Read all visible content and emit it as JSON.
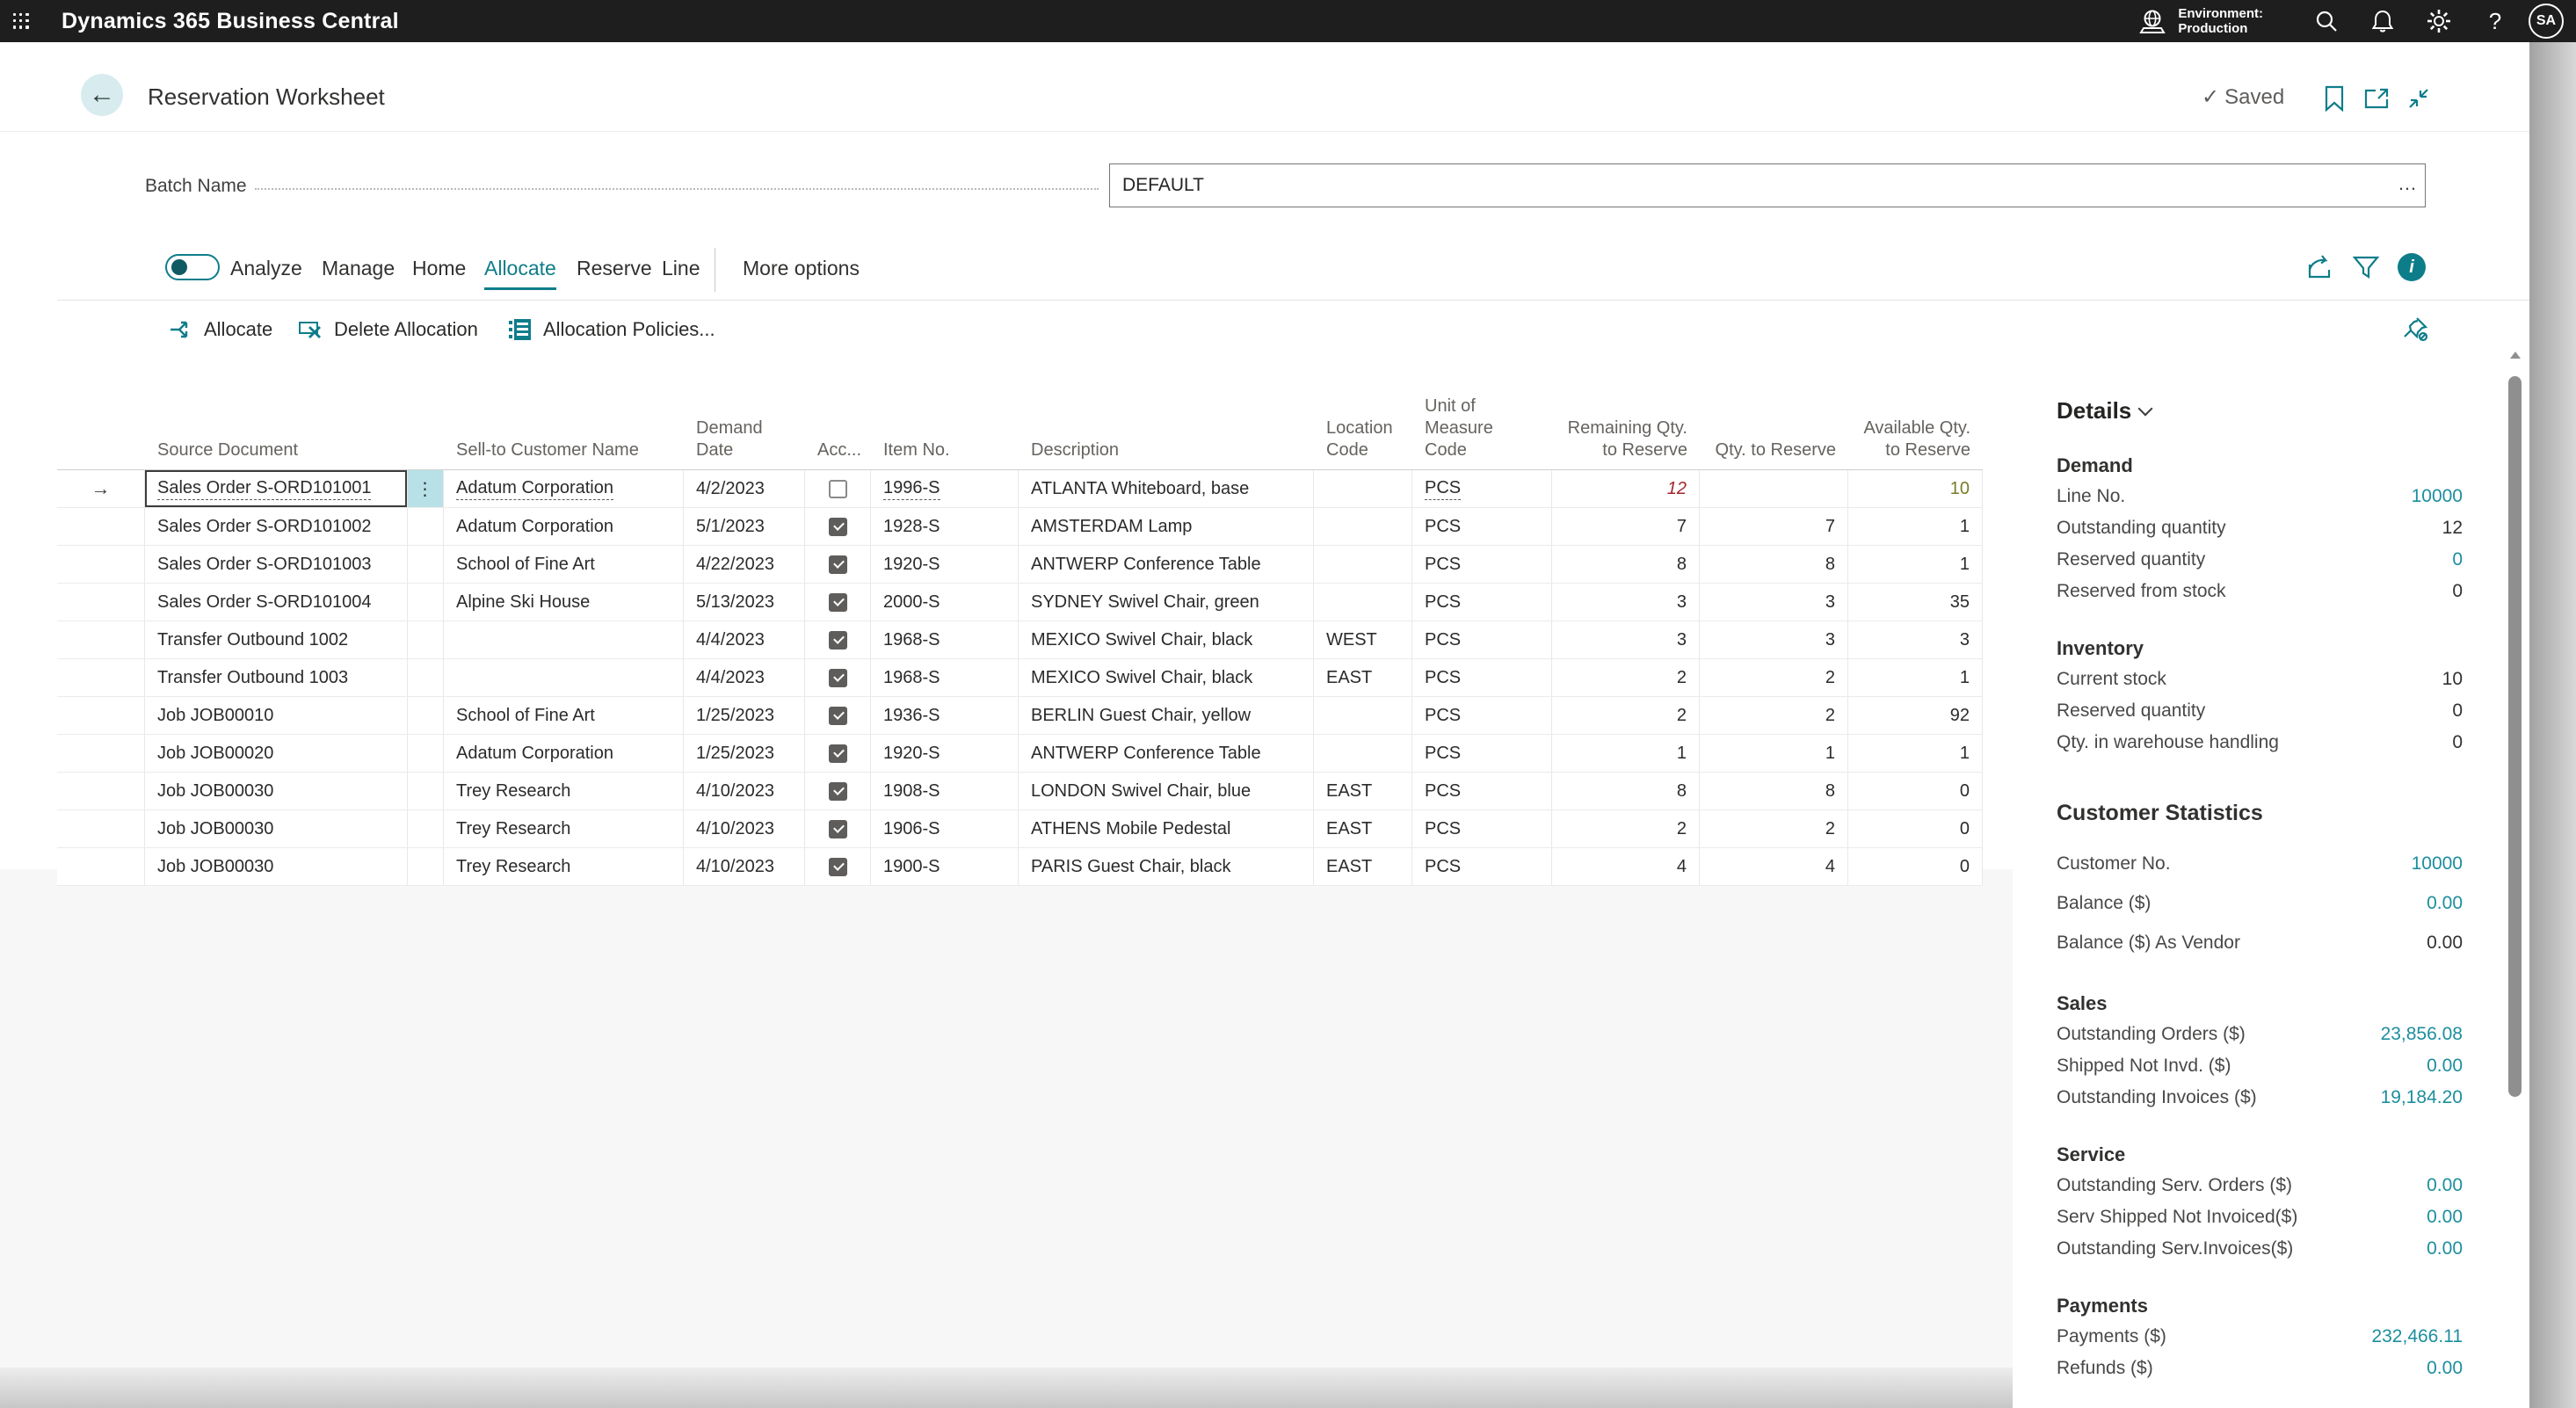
{
  "colors": {
    "accent": "#0e7d8a",
    "link_value": "#1d8e9e",
    "attention_red": "#a4262c",
    "favorable_olive": "#7b7b27",
    "topbar_bg": "#1f1e1e",
    "selection_teal": "#b7e1e6"
  },
  "topbar": {
    "app_title": "Dynamics 365 Business Central",
    "environment_label": "Environment:",
    "environment_name": "Production",
    "avatar_initials": "SA",
    "icons": [
      "app-launcher",
      "environment-globe",
      "search",
      "notifications-bell",
      "settings-gear",
      "help",
      "avatar"
    ]
  },
  "header": {
    "title": "Reservation Worksheet",
    "saved_check": "✓",
    "saved_label": "Saved",
    "icons": [
      "bookmark",
      "open-in-new-window",
      "collapse"
    ]
  },
  "batch": {
    "label": "Batch Name",
    "value": "DEFAULT",
    "assist_edit": "…"
  },
  "ribbon": {
    "toggle_label": "Analyze",
    "tabs": [
      {
        "label": "Analyze"
      },
      {
        "label": "Manage"
      },
      {
        "label": "Home"
      },
      {
        "label": "Allocate",
        "active": true
      },
      {
        "label": "Reserve"
      },
      {
        "label": "Line"
      }
    ],
    "more_options": "More options",
    "actions": [
      {
        "label": "Allocate"
      },
      {
        "label": "Delete Allocation"
      },
      {
        "label": "Allocation Policies..."
      }
    ],
    "right_icons": [
      "share",
      "filter",
      "info"
    ],
    "pin_icon": "unpin"
  },
  "table": {
    "selected_row_marker": "→",
    "ellipsis_glyph": "⋮",
    "columns": [
      "Source Document",
      "Sell-to Customer Name",
      "Demand Date",
      "Acc...",
      "Item No.",
      "Description",
      "Location Code",
      "Unit of Measure Code",
      "Remaining Qty. to Reserve",
      "Qty. to Reserve",
      "Available Qty. to Reserve"
    ],
    "rows": [
      {
        "source_document": "Sales Order S-ORD101001",
        "customer": "Adatum Corporation",
        "demand_date": "4/2/2023",
        "accepted": false,
        "item_no": "1996-S",
        "description": "ATLANTA Whiteboard, base",
        "location_code": "",
        "uom": "PCS",
        "remaining_qty": "12",
        "qty_to_reserve": "",
        "available_qty": "10",
        "selected": true,
        "remaining_style": "attention",
        "available_style": "favorable"
      },
      {
        "source_document": "Sales Order S-ORD101002",
        "customer": "Adatum Corporation",
        "demand_date": "5/1/2023",
        "accepted": true,
        "item_no": "1928-S",
        "description": "AMSTERDAM Lamp",
        "location_code": "",
        "uom": "PCS",
        "remaining_qty": "7",
        "qty_to_reserve": "7",
        "available_qty": "1"
      },
      {
        "source_document": "Sales Order S-ORD101003",
        "customer": "School of Fine Art",
        "demand_date": "4/22/2023",
        "accepted": true,
        "item_no": "1920-S",
        "description": "ANTWERP Conference Table",
        "location_code": "",
        "uom": "PCS",
        "remaining_qty": "8",
        "qty_to_reserve": "8",
        "available_qty": "1"
      },
      {
        "source_document": "Sales Order S-ORD101004",
        "customer": "Alpine Ski House",
        "demand_date": "5/13/2023",
        "accepted": true,
        "item_no": "2000-S",
        "description": "SYDNEY Swivel Chair, green",
        "location_code": "",
        "uom": "PCS",
        "remaining_qty": "3",
        "qty_to_reserve": "3",
        "available_qty": "35"
      },
      {
        "source_document": "Transfer Outbound 1002",
        "customer": "",
        "demand_date": "4/4/2023",
        "accepted": true,
        "item_no": "1968-S",
        "description": "MEXICO Swivel Chair, black",
        "location_code": "WEST",
        "uom": "PCS",
        "remaining_qty": "3",
        "qty_to_reserve": "3",
        "available_qty": "3"
      },
      {
        "source_document": "Transfer Outbound 1003",
        "customer": "",
        "demand_date": "4/4/2023",
        "accepted": true,
        "item_no": "1968-S",
        "description": "MEXICO Swivel Chair, black",
        "location_code": "EAST",
        "uom": "PCS",
        "remaining_qty": "2",
        "qty_to_reserve": "2",
        "available_qty": "1"
      },
      {
        "source_document": "Job JOB00010",
        "customer": "School of Fine Art",
        "demand_date": "1/25/2023",
        "accepted": true,
        "item_no": "1936-S",
        "description": "BERLIN Guest Chair, yellow",
        "location_code": "",
        "uom": "PCS",
        "remaining_qty": "2",
        "qty_to_reserve": "2",
        "available_qty": "92"
      },
      {
        "source_document": "Job JOB00020",
        "customer": "Adatum Corporation",
        "demand_date": "1/25/2023",
        "accepted": true,
        "item_no": "1920-S",
        "description": "ANTWERP Conference Table",
        "location_code": "",
        "uom": "PCS",
        "remaining_qty": "1",
        "qty_to_reserve": "1",
        "available_qty": "1"
      },
      {
        "source_document": "Job JOB00030",
        "customer": "Trey Research",
        "demand_date": "4/10/2023",
        "accepted": true,
        "item_no": "1908-S",
        "description": "LONDON Swivel Chair, blue",
        "location_code": "EAST",
        "uom": "PCS",
        "remaining_qty": "8",
        "qty_to_reserve": "8",
        "available_qty": "0"
      },
      {
        "source_document": "Job JOB00030",
        "customer": "Trey Research",
        "demand_date": "4/10/2023",
        "accepted": true,
        "item_no": "1906-S",
        "description": "ATHENS Mobile Pedestal",
        "location_code": "EAST",
        "uom": "PCS",
        "remaining_qty": "2",
        "qty_to_reserve": "2",
        "available_qty": "0"
      },
      {
        "source_document": "Job JOB00030",
        "customer": "Trey Research",
        "demand_date": "4/10/2023",
        "accepted": true,
        "item_no": "1900-S",
        "description": "PARIS Guest Chair, black",
        "location_code": "EAST",
        "uom": "PCS",
        "remaining_qty": "4",
        "qty_to_reserve": "4",
        "available_qty": "0"
      }
    ]
  },
  "details": {
    "title": "Details",
    "groups": [
      {
        "heading": "Demand",
        "rows": [
          {
            "label": "Line No.",
            "value": "10000",
            "teal": true
          },
          {
            "label": "Outstanding quantity",
            "value": "12"
          },
          {
            "label": "Reserved quantity",
            "value": "0",
            "teal": true
          },
          {
            "label": "Reserved from stock",
            "value": "0"
          }
        ]
      },
      {
        "heading": "Inventory",
        "rows": [
          {
            "label": "Current stock",
            "value": "10"
          },
          {
            "label": "Reserved quantity",
            "value": "0"
          },
          {
            "label": "Qty. in warehouse handling",
            "value": "0"
          }
        ]
      },
      {
        "heading": "Customer Statistics",
        "big": true,
        "rows": [
          {
            "label": "Customer No.",
            "value": "10000",
            "teal": true
          },
          {
            "label": "Balance ($)",
            "value": "0.00",
            "teal": true
          },
          {
            "label": "Balance ($) As Vendor",
            "value": "0.00"
          }
        ]
      },
      {
        "heading": "Sales",
        "rows": [
          {
            "label": "Outstanding Orders ($)",
            "value": "23,856.08",
            "teal": true
          },
          {
            "label": "Shipped Not Invd. ($)",
            "value": "0.00",
            "teal": true
          },
          {
            "label": "Outstanding Invoices ($)",
            "value": "19,184.20",
            "teal": true
          }
        ]
      },
      {
        "heading": "Service",
        "rows": [
          {
            "label": "Outstanding Serv. Orders ($)",
            "value": "0.00",
            "teal": true
          },
          {
            "label": "Serv Shipped Not Invoiced($)",
            "value": "0.00",
            "teal": true
          },
          {
            "label": "Outstanding Serv.Invoices($)",
            "value": "0.00",
            "teal": true
          }
        ]
      },
      {
        "heading": "Payments",
        "rows": [
          {
            "label": "Payments ($)",
            "value": "232,466.11",
            "teal": true
          },
          {
            "label": "Refunds ($)",
            "value": "0.00",
            "teal": true
          }
        ]
      }
    ]
  }
}
